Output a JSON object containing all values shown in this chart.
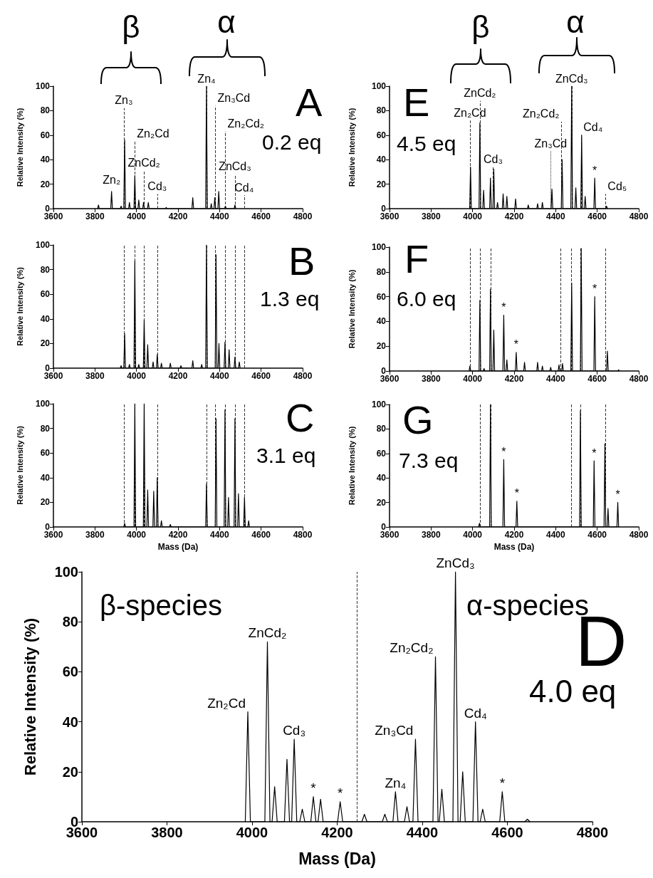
{
  "chart_data": [
    {
      "type": "line",
      "title": "A",
      "subtitle": "0.2 eq",
      "ylabel": "Relative Intensity (%)",
      "color": "#000000",
      "marker": "none",
      "x": [
        3813,
        3817,
        3821,
        3876,
        3880,
        3884,
        3922,
        3926,
        3930,
        3939,
        3943,
        3947,
        3962,
        3966,
        3970,
        3988,
        3992,
        3996,
        4007,
        4011,
        4015,
        4030,
        4034,
        4038,
        4053,
        4057,
        4061,
        4139,
        4143,
        4147,
        4267,
        4271,
        4275,
        4333,
        4337,
        4341,
        4356,
        4360,
        4364,
        4373,
        4377,
        4381,
        4392,
        4396,
        4400,
        4424,
        4428,
        4432,
        4470,
        4474,
        4478
      ],
      "values": [
        0,
        3,
        0,
        0,
        14,
        0,
        0,
        2,
        0,
        0,
        56,
        0,
        0,
        5,
        0,
        0,
        27,
        0,
        0,
        7,
        0,
        0,
        5,
        0,
        0,
        5,
        0,
        0,
        1,
        0,
        0,
        9,
        0,
        0,
        100,
        0,
        0,
        4,
        0,
        0,
        9,
        0,
        0,
        14,
        0,
        0,
        2,
        0,
        0,
        3,
        0
      ],
      "xlim": [
        3600,
        4800
      ],
      "xticks": [
        3600,
        3800,
        4000,
        4200,
        4400,
        4600,
        4800
      ],
      "ylim": [
        0,
        100
      ],
      "yticks": [
        0,
        20,
        40,
        60,
        80,
        100
      ],
      "ref_lines": [
        {
          "axis": "x",
          "value": 3939,
          "line_style": "dashed"
        },
        {
          "axis": "x",
          "value": 3992,
          "line_style": "dashed"
        },
        {
          "axis": "x",
          "value": 4036,
          "line_style": "dashed"
        },
        {
          "axis": "x",
          "value": 4100,
          "line_style": "dashed"
        },
        {
          "axis": "x",
          "value": 4337,
          "line_style": "dashed"
        },
        {
          "axis": "x",
          "value": 4380,
          "line_style": "dashed"
        },
        {
          "axis": "x",
          "value": 4428,
          "line_style": "dashed"
        },
        {
          "axis": "x",
          "value": 4474,
          "line_style": "dashed"
        },
        {
          "axis": "x",
          "value": 4518,
          "line_style": "dashed"
        }
      ],
      "annotations": [
        "β",
        "α",
        {
          "text": "Zn₂",
          "x": 3880,
          "y": 17
        },
        {
          "text": "Zn₃",
          "x": 3939,
          "y": 82
        },
        {
          "text": "Zn₂Cd",
          "x": 3992,
          "y": 55
        },
        {
          "text": "ZnCd₂",
          "x": 4036,
          "y": 31
        },
        {
          "text": "Cd₃",
          "x": 4100,
          "y": 12
        },
        {
          "text": "Zn₄",
          "x": 4337,
          "y": 100
        },
        {
          "text": "Zn₃Cd",
          "x": 4380,
          "y": 84
        },
        {
          "text": "Zn₂Cd₂",
          "x": 4428,
          "y": 63
        },
        {
          "text": "ZnCd₃",
          "x": 4474,
          "y": 28
        },
        {
          "text": "Cd₄",
          "x": 4518,
          "y": 11
        }
      ]
    },
    {
      "type": "line",
      "title": "E",
      "subtitle": "4.5 eq",
      "ylabel": "Relative Intensity (%)",
      "color": "#000000",
      "marker": "none",
      "x": [
        3986,
        3990,
        3994,
        4031,
        4035,
        4039,
        4049,
        4053,
        4057,
        4082,
        4086,
        4090,
        4098,
        4102,
        4106,
        4116,
        4120,
        4124,
        4143,
        4147,
        4151,
        4161,
        4165,
        4169,
        4203,
        4207,
        4211,
        4264,
        4268,
        4272,
        4309,
        4313,
        4317,
        4332,
        4336,
        4340,
        4378,
        4382,
        4386,
        4427,
        4431,
        4435,
        4473,
        4477,
        4481,
        4493,
        4497,
        4501,
        4521,
        4525,
        4529,
        4538,
        4542,
        4546,
        4584,
        4588,
        4592,
        4641,
        4645,
        4649
      ],
      "values": [
        0,
        34,
        0,
        0,
        70,
        0,
        0,
        15,
        0,
        0,
        25,
        0,
        0,
        32,
        0,
        0,
        5,
        0,
        0,
        12,
        0,
        0,
        10,
        0,
        0,
        8,
        0,
        0,
        3,
        0,
        0,
        4,
        0,
        0,
        5,
        0,
        0,
        16,
        0,
        0,
        40,
        0,
        0,
        100,
        0,
        0,
        17,
        0,
        0,
        60,
        0,
        0,
        10,
        0,
        0,
        25,
        0,
        0,
        2,
        0
      ],
      "xlim": [
        3600,
        4800
      ],
      "xticks": [
        3600,
        3800,
        4000,
        4200,
        4400,
        4600,
        4800
      ],
      "ylim": [
        0,
        100
      ],
      "yticks": [
        0,
        20,
        40,
        60,
        80,
        100
      ],
      "ref_lines": [
        {
          "axis": "x",
          "value": 3987,
          "line_style": "dashed"
        },
        {
          "axis": "x",
          "value": 4035,
          "line_style": "dashed"
        },
        {
          "axis": "x",
          "value": 4099,
          "line_style": "dashed"
        },
        {
          "axis": "x",
          "value": 4376,
          "line_style": "dotted"
        },
        {
          "axis": "x",
          "value": 4428,
          "line_style": "dashed"
        },
        {
          "axis": "x",
          "value": 4477,
          "line_style": "dashed"
        },
        {
          "axis": "x",
          "value": 4523,
          "line_style": "dashed"
        },
        {
          "axis": "x",
          "value": 4640,
          "line_style": "dashed"
        }
      ],
      "annotations": [
        "β",
        "α",
        {
          "text": "Zn₂Cd",
          "x": 3987,
          "y": 72
        },
        {
          "text": "ZnCd₂",
          "x": 4035,
          "y": 88
        },
        {
          "text": "Cd₃",
          "x": 4099,
          "y": 34
        },
        {
          "text": "Zn₃Cd",
          "x": 4376,
          "y": 47
        },
        {
          "text": "Zn₂Cd₂",
          "x": 4428,
          "y": 71
        },
        {
          "text": "ZnCd₃",
          "x": 4477,
          "y": 100
        },
        {
          "text": "Cd₄",
          "x": 4523,
          "y": 60
        },
        {
          "text": "*",
          "x": 4588,
          "y": 25
        },
        {
          "text": "Cd₅",
          "x": 4640,
          "y": 12
        }
      ]
    },
    {
      "type": "line",
      "title": "B",
      "subtitle": "1.3 eq",
      "ylabel": "Relative Intensity (%)",
      "color": "#000000",
      "marker": "none",
      "x": [
        3922,
        3926,
        3930,
        3939,
        3943,
        3947,
        3962,
        3966,
        3970,
        3988,
        3992,
        3996,
        4007,
        4011,
        4015,
        4033,
        4037,
        4041,
        4050,
        4054,
        4058,
        4076,
        4080,
        4084,
        4096,
        4100,
        4104,
        4116,
        4120,
        4124,
        4159,
        4163,
        4167,
        4210,
        4214,
        4218,
        4267,
        4271,
        4275,
        4310,
        4314,
        4318,
        4333,
        4337,
        4341,
        4379,
        4383,
        4387,
        4393,
        4397,
        4401,
        4422,
        4426,
        4430,
        4442,
        4446,
        4450,
        4470,
        4474,
        4478,
        4491,
        4495,
        4499
      ],
      "values": [
        0,
        2,
        0,
        0,
        28,
        0,
        0,
        3,
        0,
        0,
        87,
        0,
        0,
        3,
        0,
        0,
        39,
        0,
        0,
        19,
        0,
        0,
        5,
        0,
        0,
        11,
        0,
        0,
        4,
        0,
        0,
        4,
        0,
        0,
        2,
        0,
        0,
        6,
        0,
        0,
        3,
        0,
        0,
        100,
        0,
        0,
        92,
        0,
        0,
        20,
        0,
        0,
        21,
        0,
        0,
        15,
        0,
        0,
        9,
        0,
        0,
        5,
        0
      ],
      "xlim": [
        3600,
        4800
      ],
      "xticks": [
        3600,
        3800,
        4000,
        4200,
        4400,
        4600,
        4800
      ],
      "ylim": [
        0,
        100
      ],
      "yticks": [
        0,
        20,
        40,
        60,
        80,
        100
      ],
      "ref_lines": [
        {
          "axis": "x",
          "value": 3939,
          "line_style": "dashed"
        },
        {
          "axis": "x",
          "value": 3992,
          "line_style": "dashed"
        },
        {
          "axis": "x",
          "value": 4036,
          "line_style": "dashed"
        },
        {
          "axis": "x",
          "value": 4100,
          "line_style": "dashed"
        },
        {
          "axis": "x",
          "value": 4337,
          "line_style": "dashed"
        },
        {
          "axis": "x",
          "value": 4380,
          "line_style": "dashed"
        },
        {
          "axis": "x",
          "value": 4428,
          "line_style": "dashed"
        },
        {
          "axis": "x",
          "value": 4474,
          "line_style": "dashed"
        },
        {
          "axis": "x",
          "value": 4518,
          "line_style": "dashed"
        }
      ]
    },
    {
      "type": "line",
      "title": "F",
      "subtitle": "6.0 eq",
      "ylabel": "Relative Intensity (%)",
      "color": "#000000",
      "marker": "none",
      "x": [
        3983,
        3987,
        3991,
        4031,
        4035,
        4039,
        4051,
        4055,
        4059,
        4082,
        4086,
        4090,
        4098,
        4102,
        4106,
        4146,
        4150,
        4154,
        4161,
        4165,
        4169,
        4206,
        4210,
        4214,
        4246,
        4250,
        4254,
        4309,
        4313,
        4317,
        4332,
        4336,
        4340,
        4372,
        4376,
        4380,
        4412,
        4416,
        4420,
        4429,
        4433,
        4437,
        4473,
        4477,
        4481,
        4519,
        4523,
        4527,
        4584,
        4588,
        4592,
        4645,
        4649,
        4653,
        4699,
        4703,
        4707
      ],
      "values": [
        0,
        4,
        0,
        0,
        57,
        0,
        0,
        2,
        0,
        0,
        66,
        0,
        0,
        33,
        0,
        0,
        45,
        0,
        0,
        9,
        0,
        0,
        15,
        0,
        0,
        7,
        0,
        0,
        7,
        0,
        0,
        4,
        0,
        0,
        3,
        0,
        0,
        5,
        0,
        0,
        6,
        0,
        0,
        71,
        0,
        0,
        99,
        0,
        0,
        60,
        0,
        0,
        16,
        0,
        0,
        1,
        0
      ],
      "xlim": [
        3600,
        4800
      ],
      "xticks": [
        3600,
        3800,
        4000,
        4200,
        4400,
        4600,
        4800
      ],
      "ylim": [
        0,
        100
      ],
      "yticks": [
        0,
        20,
        40,
        60,
        80,
        100
      ],
      "ref_lines": [
        {
          "axis": "x",
          "value": 3987,
          "line_style": "dashed"
        },
        {
          "axis": "x",
          "value": 4035,
          "line_style": "dashed"
        },
        {
          "axis": "x",
          "value": 4086,
          "line_style": "dashed"
        },
        {
          "axis": "x",
          "value": 4424,
          "line_style": "dashed"
        },
        {
          "axis": "x",
          "value": 4474,
          "line_style": "dashed"
        },
        {
          "axis": "x",
          "value": 4519,
          "line_style": "dashed"
        },
        {
          "axis": "x",
          "value": 4640,
          "line_style": "dashed"
        }
      ],
      "annotations": [
        {
          "text": "*",
          "x": 4150,
          "y": 45
        },
        {
          "text": "*",
          "x": 4210,
          "y": 15
        },
        {
          "text": "*",
          "x": 4588,
          "y": 60
        }
      ]
    },
    {
      "type": "line",
      "title": "C",
      "subtitle": "3.1 eq",
      "xlabel": "Mass (Da)",
      "ylabel": "Relative Intensity (%)",
      "color": "#000000",
      "marker": "none",
      "x": [
        3939,
        3943,
        3947,
        3988,
        3992,
        3996,
        4033,
        4037,
        4041,
        4050,
        4054,
        4058,
        4079,
        4083,
        4087,
        4096,
        4100,
        4104,
        4116,
        4120,
        4124,
        4159,
        4163,
        4167,
        4333,
        4337,
        4341,
        4379,
        4383,
        4387,
        4422,
        4426,
        4430,
        4439,
        4443,
        4447,
        4470,
        4474,
        4478,
        4487,
        4491,
        4495,
        4516,
        4520,
        4524,
        4536,
        4540,
        4544
      ],
      "values": [
        0,
        3,
        0,
        0,
        100,
        0,
        0,
        100,
        0,
        0,
        30,
        0,
        0,
        29,
        0,
        0,
        40,
        0,
        0,
        5,
        0,
        0,
        2,
        0,
        0,
        35,
        0,
        0,
        88,
        0,
        0,
        95,
        0,
        0,
        24,
        0,
        0,
        88,
        0,
        0,
        27,
        0,
        0,
        24,
        0,
        0,
        5,
        0
      ],
      "xlim": [
        3600,
        4800
      ],
      "xticks": [
        3600,
        3800,
        4000,
        4200,
        4400,
        4600,
        4800
      ],
      "ylim": [
        0,
        100
      ],
      "yticks": [
        0,
        20,
        40,
        60,
        80,
        100
      ],
      "ref_lines": [
        {
          "axis": "x",
          "value": 3939,
          "line_style": "dashed"
        },
        {
          "axis": "x",
          "value": 3992,
          "line_style": "dashed"
        },
        {
          "axis": "x",
          "value": 4036,
          "line_style": "dashed"
        },
        {
          "axis": "x",
          "value": 4100,
          "line_style": "dashed"
        },
        {
          "axis": "x",
          "value": 4337,
          "line_style": "dashed"
        },
        {
          "axis": "x",
          "value": 4380,
          "line_style": "dashed"
        },
        {
          "axis": "x",
          "value": 4428,
          "line_style": "dashed"
        },
        {
          "axis": "x",
          "value": 4474,
          "line_style": "dashed"
        },
        {
          "axis": "x",
          "value": 4518,
          "line_style": "dashed"
        }
      ]
    },
    {
      "type": "line",
      "title": "G",
      "subtitle": "7.3 eq",
      "xlabel": "Mass (Da)",
      "ylabel": "Relative Intensity (%)",
      "color": "#000000",
      "marker": "none",
      "x": [
        4029,
        4033,
        4037,
        4082,
        4086,
        4090,
        4146,
        4150,
        4154,
        4209,
        4213,
        4217,
        4515,
        4519,
        4523,
        4581,
        4585,
        4589,
        4633,
        4637,
        4641,
        4648,
        4652,
        4656,
        4695,
        4699,
        4703
      ],
      "values": [
        0,
        3,
        0,
        0,
        100,
        0,
        0,
        55,
        0,
        0,
        21,
        0,
        0,
        95,
        0,
        0,
        54,
        0,
        0,
        68,
        0,
        0,
        15,
        0,
        0,
        20,
        0
      ],
      "xlim": [
        3600,
        4800
      ],
      "xticks": [
        3600,
        3800,
        4000,
        4200,
        4400,
        4600,
        4800
      ],
      "ylim": [
        0,
        100
      ],
      "yticks": [
        0,
        20,
        40,
        60,
        80,
        100
      ],
      "ref_lines": [
        {
          "axis": "x",
          "value": 4035,
          "line_style": "dashed"
        },
        {
          "axis": "x",
          "value": 4086,
          "line_style": "dashed"
        },
        {
          "axis": "x",
          "value": 4474,
          "line_style": "dashed"
        },
        {
          "axis": "x",
          "value": 4519,
          "line_style": "dashed"
        },
        {
          "axis": "x",
          "value": 4640,
          "line_style": "dashed"
        }
      ],
      "annotations": [
        {
          "text": "*",
          "x": 4150,
          "y": 55
        },
        {
          "text": "*",
          "x": 4213,
          "y": 21
        },
        {
          "text": "*",
          "x": 4585,
          "y": 54
        },
        {
          "text": "*",
          "x": 4699,
          "y": 20
        }
      ]
    },
    {
      "type": "line",
      "title": "D",
      "subtitle": "4.0 eq",
      "xlabel": "Mass (Da)",
      "ylabel": "Relative Intensity (%)",
      "color": "#000000",
      "marker": "none",
      "x": [
        3984,
        3990,
        3996,
        4030,
        4036,
        4042,
        4047,
        4053,
        4059,
        4076,
        4082,
        4088,
        4093,
        4099,
        4105,
        4112,
        4118,
        4124,
        4138,
        4144,
        4150,
        4155,
        4161,
        4167,
        4201,
        4207,
        4213,
        4258,
        4264,
        4270,
        4306,
        4312,
        4318,
        4331,
        4337,
        4343,
        4358,
        4364,
        4370,
        4378,
        4384,
        4390,
        4425,
        4431,
        4437,
        4440,
        4446,
        4452,
        4472,
        4478,
        4484,
        4489,
        4495,
        4501,
        4519,
        4525,
        4531,
        4536,
        4542,
        4548,
        4582,
        4588,
        4594,
        4641,
        4647,
        4653
      ],
      "values": [
        0,
        44,
        0,
        0,
        72,
        0,
        0,
        14,
        0,
        0,
        25,
        0,
        0,
        33,
        0,
        0,
        5,
        0,
        0,
        10,
        0,
        0,
        9,
        0,
        0,
        8,
        0,
        0,
        3,
        0,
        0,
        3,
        0,
        0,
        12,
        0,
        0,
        6,
        0,
        0,
        33,
        0,
        0,
        66,
        0,
        0,
        13,
        0,
        0,
        100,
        0,
        0,
        20,
        0,
        0,
        40,
        0,
        0,
        5,
        0,
        0,
        12,
        0,
        0,
        1,
        0
      ],
      "xlim": [
        3600,
        4800
      ],
      "xticks": [
        3600,
        3800,
        4000,
        4200,
        4400,
        4600,
        4800
      ],
      "ylim": [
        0,
        100
      ],
      "yticks": [
        0,
        20,
        40,
        60,
        80,
        100
      ],
      "ref_lines": [
        {
          "axis": "x",
          "value": 4247,
          "line_style": "dashed"
        }
      ],
      "annotations": [
        "β-species",
        "α-species",
        {
          "text": "Zn₂Cd",
          "x": 3990,
          "y": 44
        },
        {
          "text": "ZnCd₂",
          "x": 4036,
          "y": 72
        },
        {
          "text": "Cd₃",
          "x": 4099,
          "y": 33
        },
        {
          "text": "*",
          "x": 4144,
          "y": 10
        },
        {
          "text": "*",
          "x": 4207,
          "y": 8
        },
        {
          "text": "Zn₄",
          "x": 4337,
          "y": 12
        },
        {
          "text": "Zn₃Cd",
          "x": 4384,
          "y": 33
        },
        {
          "text": "Zn₂Cd₂",
          "x": 4431,
          "y": 66
        },
        {
          "text": "ZnCd₃",
          "x": 4478,
          "y": 100
        },
        {
          "text": "Cd₄",
          "x": 4525,
          "y": 40
        },
        {
          "text": "*",
          "x": 4588,
          "y": 12
        }
      ]
    }
  ]
}
